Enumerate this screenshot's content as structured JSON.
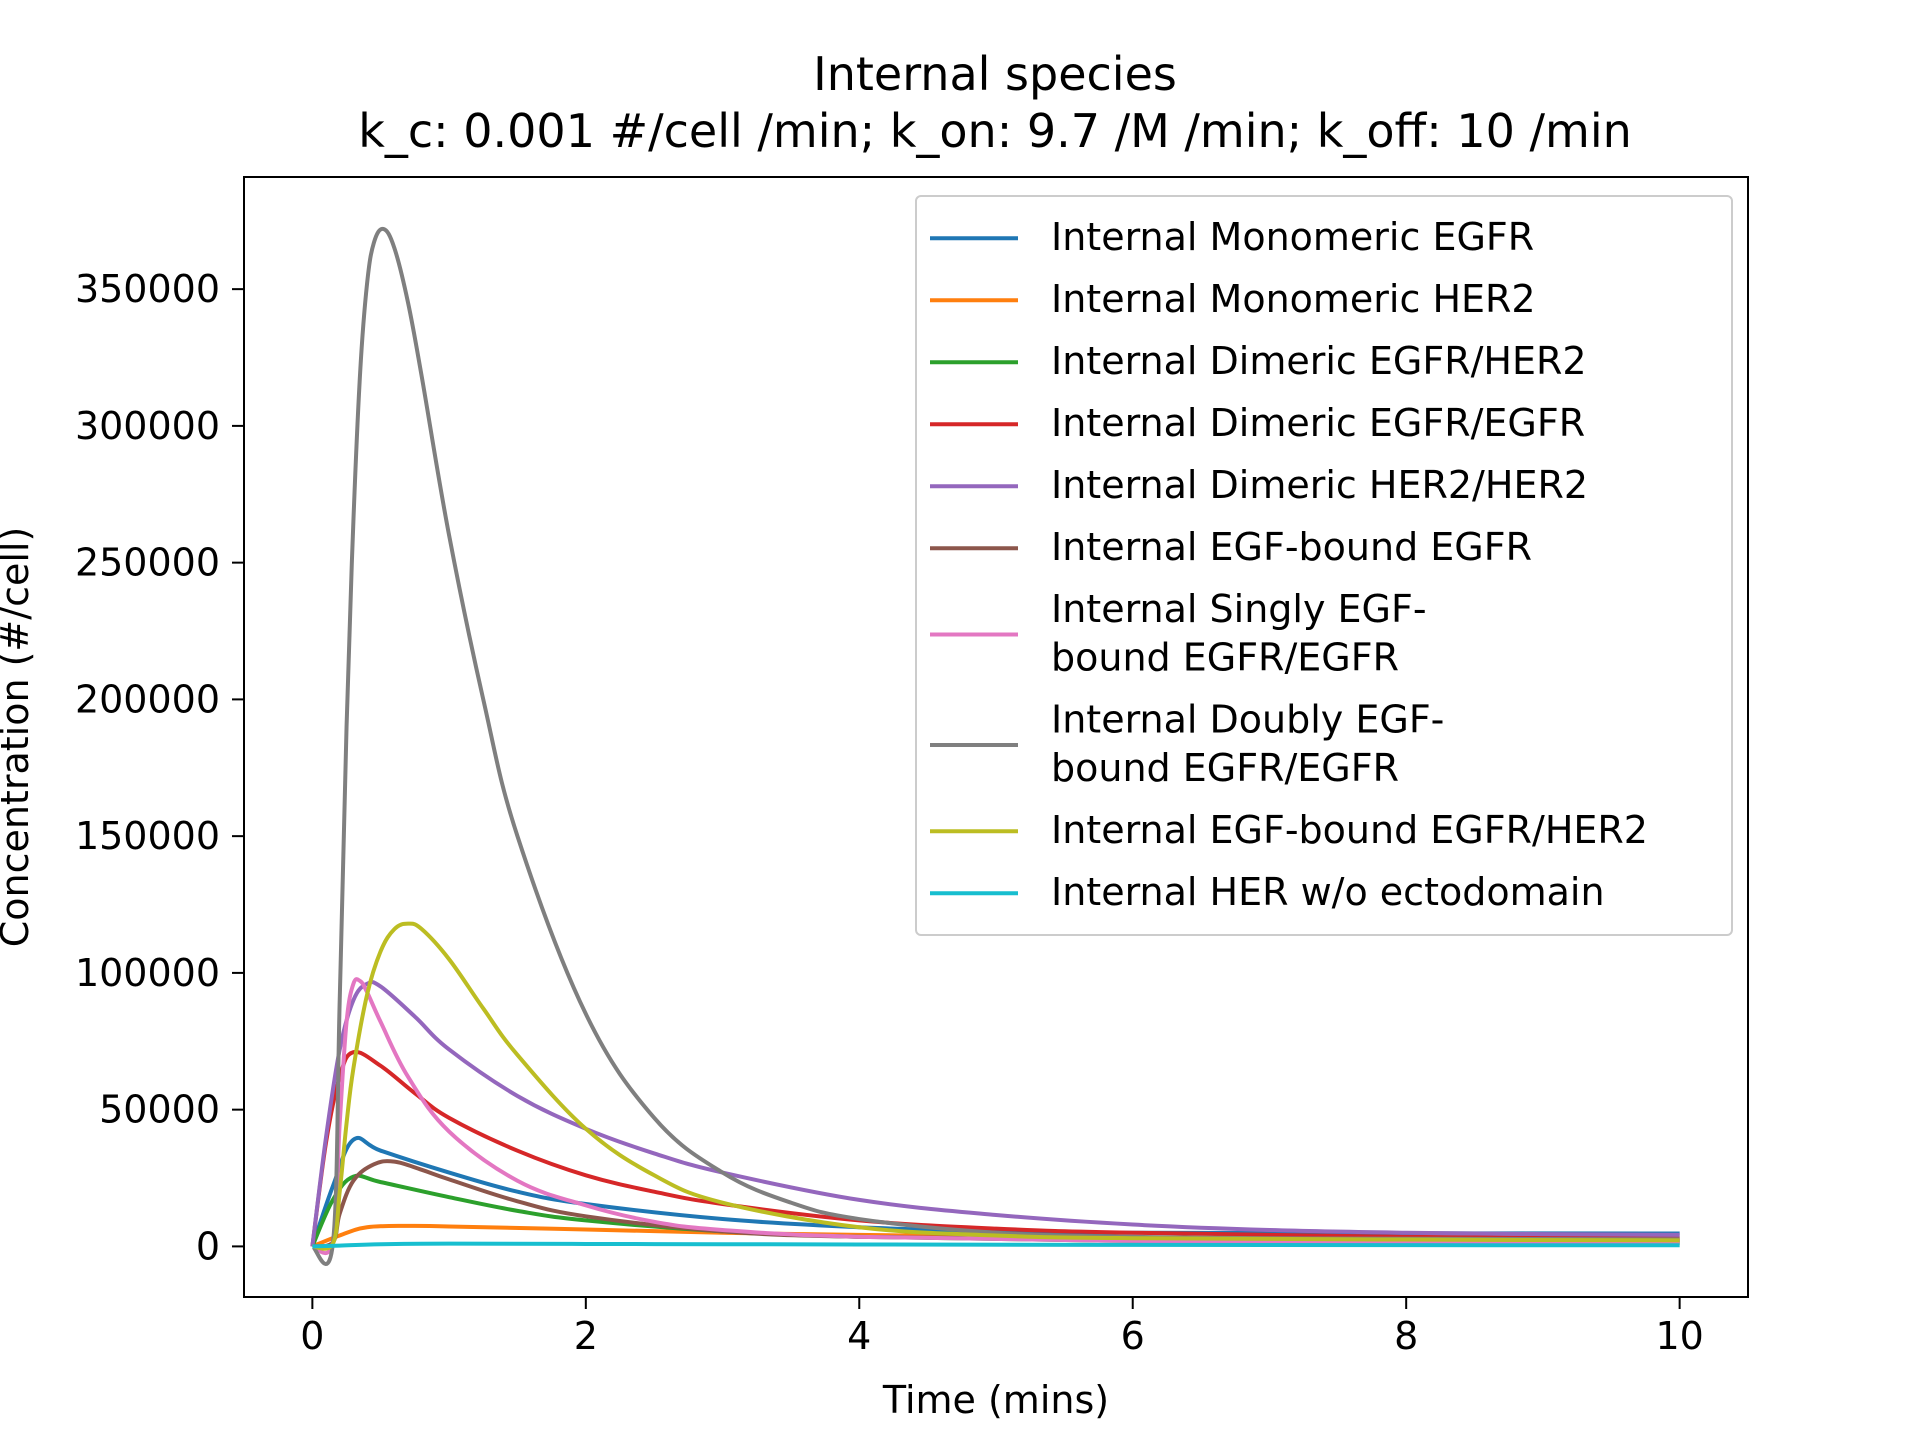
{
  "chart_data": {
    "type": "line",
    "title": "Internal species",
    "subtitle": "k_c: 0.001 #/cell /min; k_on: 9.7 /M /min; k_off: 10 /min",
    "xlabel": "Time (mins)",
    "ylabel": "Concentration (#/cell)",
    "xlim": [
      -0.5,
      10.5
    ],
    "ylim": [
      -18500,
      391000
    ],
    "xticks": [
      0,
      2,
      4,
      6,
      8,
      10
    ],
    "yticks": [
      0,
      50000,
      100000,
      150000,
      200000,
      250000,
      300000,
      350000
    ],
    "grid": false,
    "legend_position": "top-right",
    "series": [
      {
        "name": "Internal Monomeric EGFR",
        "color": "#1f77b4",
        "x": [
          0,
          0.15,
          0.3,
          0.5,
          1,
          1.5,
          2,
          3,
          4,
          5,
          6,
          8,
          10
        ],
        "y": [
          0,
          22000,
          39000,
          35000,
          27000,
          20000,
          15500,
          10000,
          7000,
          5500,
          5000,
          4800,
          4700
        ]
      },
      {
        "name": "Internal Monomeric HER2",
        "color": "#ff7f0e",
        "x": [
          0,
          0.2,
          0.4,
          0.7,
          1,
          2,
          3,
          4,
          6,
          8,
          10
        ],
        "y": [
          0,
          4000,
          7000,
          7500,
          7300,
          6200,
          5000,
          4200,
          3000,
          2500,
          2200
        ]
      },
      {
        "name": "Internal Dimeric EGFR/HER2",
        "color": "#2ca02c",
        "x": [
          0,
          0.15,
          0.3,
          0.5,
          1,
          1.5,
          2,
          3,
          4,
          6,
          8,
          10
        ],
        "y": [
          0,
          17000,
          25500,
          23500,
          18000,
          13000,
          9500,
          5500,
          3500,
          2000,
          1500,
          1300
        ]
      },
      {
        "name": "Internal Dimeric EGFR/EGFR",
        "color": "#d62728",
        "x": [
          0,
          0.1,
          0.2,
          0.3,
          0.5,
          0.75,
          1,
          1.5,
          2,
          2.5,
          3,
          4,
          5,
          6,
          8,
          10
        ],
        "y": [
          0,
          38000,
          62000,
          71000,
          66000,
          56000,
          47000,
          35000,
          26000,
          20000,
          15500,
          9500,
          6500,
          5000,
          3500,
          3000
        ]
      },
      {
        "name": "Internal Dimeric HER2/HER2",
        "color": "#9467bd",
        "x": [
          0,
          0.1,
          0.2,
          0.3,
          0.4,
          0.5,
          0.75,
          1,
          1.5,
          2,
          2.5,
          3,
          4,
          5,
          6,
          7,
          8,
          9,
          10
        ],
        "y": [
          0,
          40000,
          72000,
          90000,
          96000,
          95000,
          84000,
          72000,
          55000,
          43000,
          34000,
          27000,
          17000,
          11500,
          8000,
          6000,
          5000,
          4500,
          4200
        ]
      },
      {
        "name": "Internal EGF-bound EGFR",
        "color": "#8c564b",
        "x": [
          0,
          0.15,
          0.2,
          0.3,
          0.45,
          0.6,
          0.8,
          1,
          1.5,
          2,
          3,
          4,
          6,
          8,
          10
        ],
        "y": [
          0,
          1500,
          12000,
          24000,
          30000,
          31000,
          28000,
          24500,
          16500,
          11000,
          5500,
          3500,
          2500,
          2000,
          1800
        ]
      },
      {
        "name": "Internal Singly EGF-\nbound EGFR/EGFR",
        "color": "#e377c2",
        "x": [
          0,
          0.15,
          0.2,
          0.25,
          0.3,
          0.35,
          0.4,
          0.5,
          0.7,
          1,
          1.5,
          2,
          2.5,
          3,
          4,
          6,
          8,
          10
        ],
        "y": [
          0,
          1500,
          45000,
          82000,
          96000,
          97000,
          93000,
          82000,
          62000,
          42000,
          24000,
          15000,
          9000,
          6000,
          3500,
          2000,
          1500,
          1300
        ]
      },
      {
        "name": "Internal Doubly EGF-\nbound EGFR/EGFR",
        "color": "#7f7f7f",
        "x": [
          0,
          0.15,
          0.2,
          0.25,
          0.3,
          0.35,
          0.4,
          0.45,
          0.52,
          0.6,
          0.7,
          0.8,
          1,
          1.25,
          1.5,
          2,
          2.5,
          3,
          3.5,
          4,
          5,
          6,
          7,
          8,
          10
        ],
        "y": [
          0,
          1000,
          90000,
          190000,
          265000,
          320000,
          352000,
          367000,
          372000,
          365000,
          345000,
          318000,
          260000,
          200000,
          150000,
          85000,
          47000,
          27000,
          16000,
          10000,
          5000,
          3500,
          3000,
          2800,
          2600
        ]
      },
      {
        "name": "Internal EGF-bound EGFR/HER2",
        "color": "#bcbd22",
        "x": [
          0,
          0.15,
          0.2,
          0.25,
          0.3,
          0.4,
          0.5,
          0.6,
          0.7,
          0.8,
          1,
          1.25,
          1.5,
          2,
          2.5,
          3,
          4,
          5,
          6,
          8,
          10
        ],
        "y": [
          0,
          1000,
          20000,
          45000,
          65000,
          92000,
          108000,
          116000,
          118000,
          116000,
          105000,
          87000,
          70000,
          43000,
          26000,
          16000,
          7000,
          4000,
          3000,
          2500,
          2200
        ]
      },
      {
        "name": "Internal HER w/o ectodomain",
        "color": "#17becf",
        "x": [
          0,
          0.2,
          0.5,
          1,
          2,
          3,
          4,
          6,
          8,
          10
        ],
        "y": [
          0,
          300,
          800,
          1000,
          900,
          800,
          700,
          550,
          450,
          400
        ]
      }
    ]
  }
}
